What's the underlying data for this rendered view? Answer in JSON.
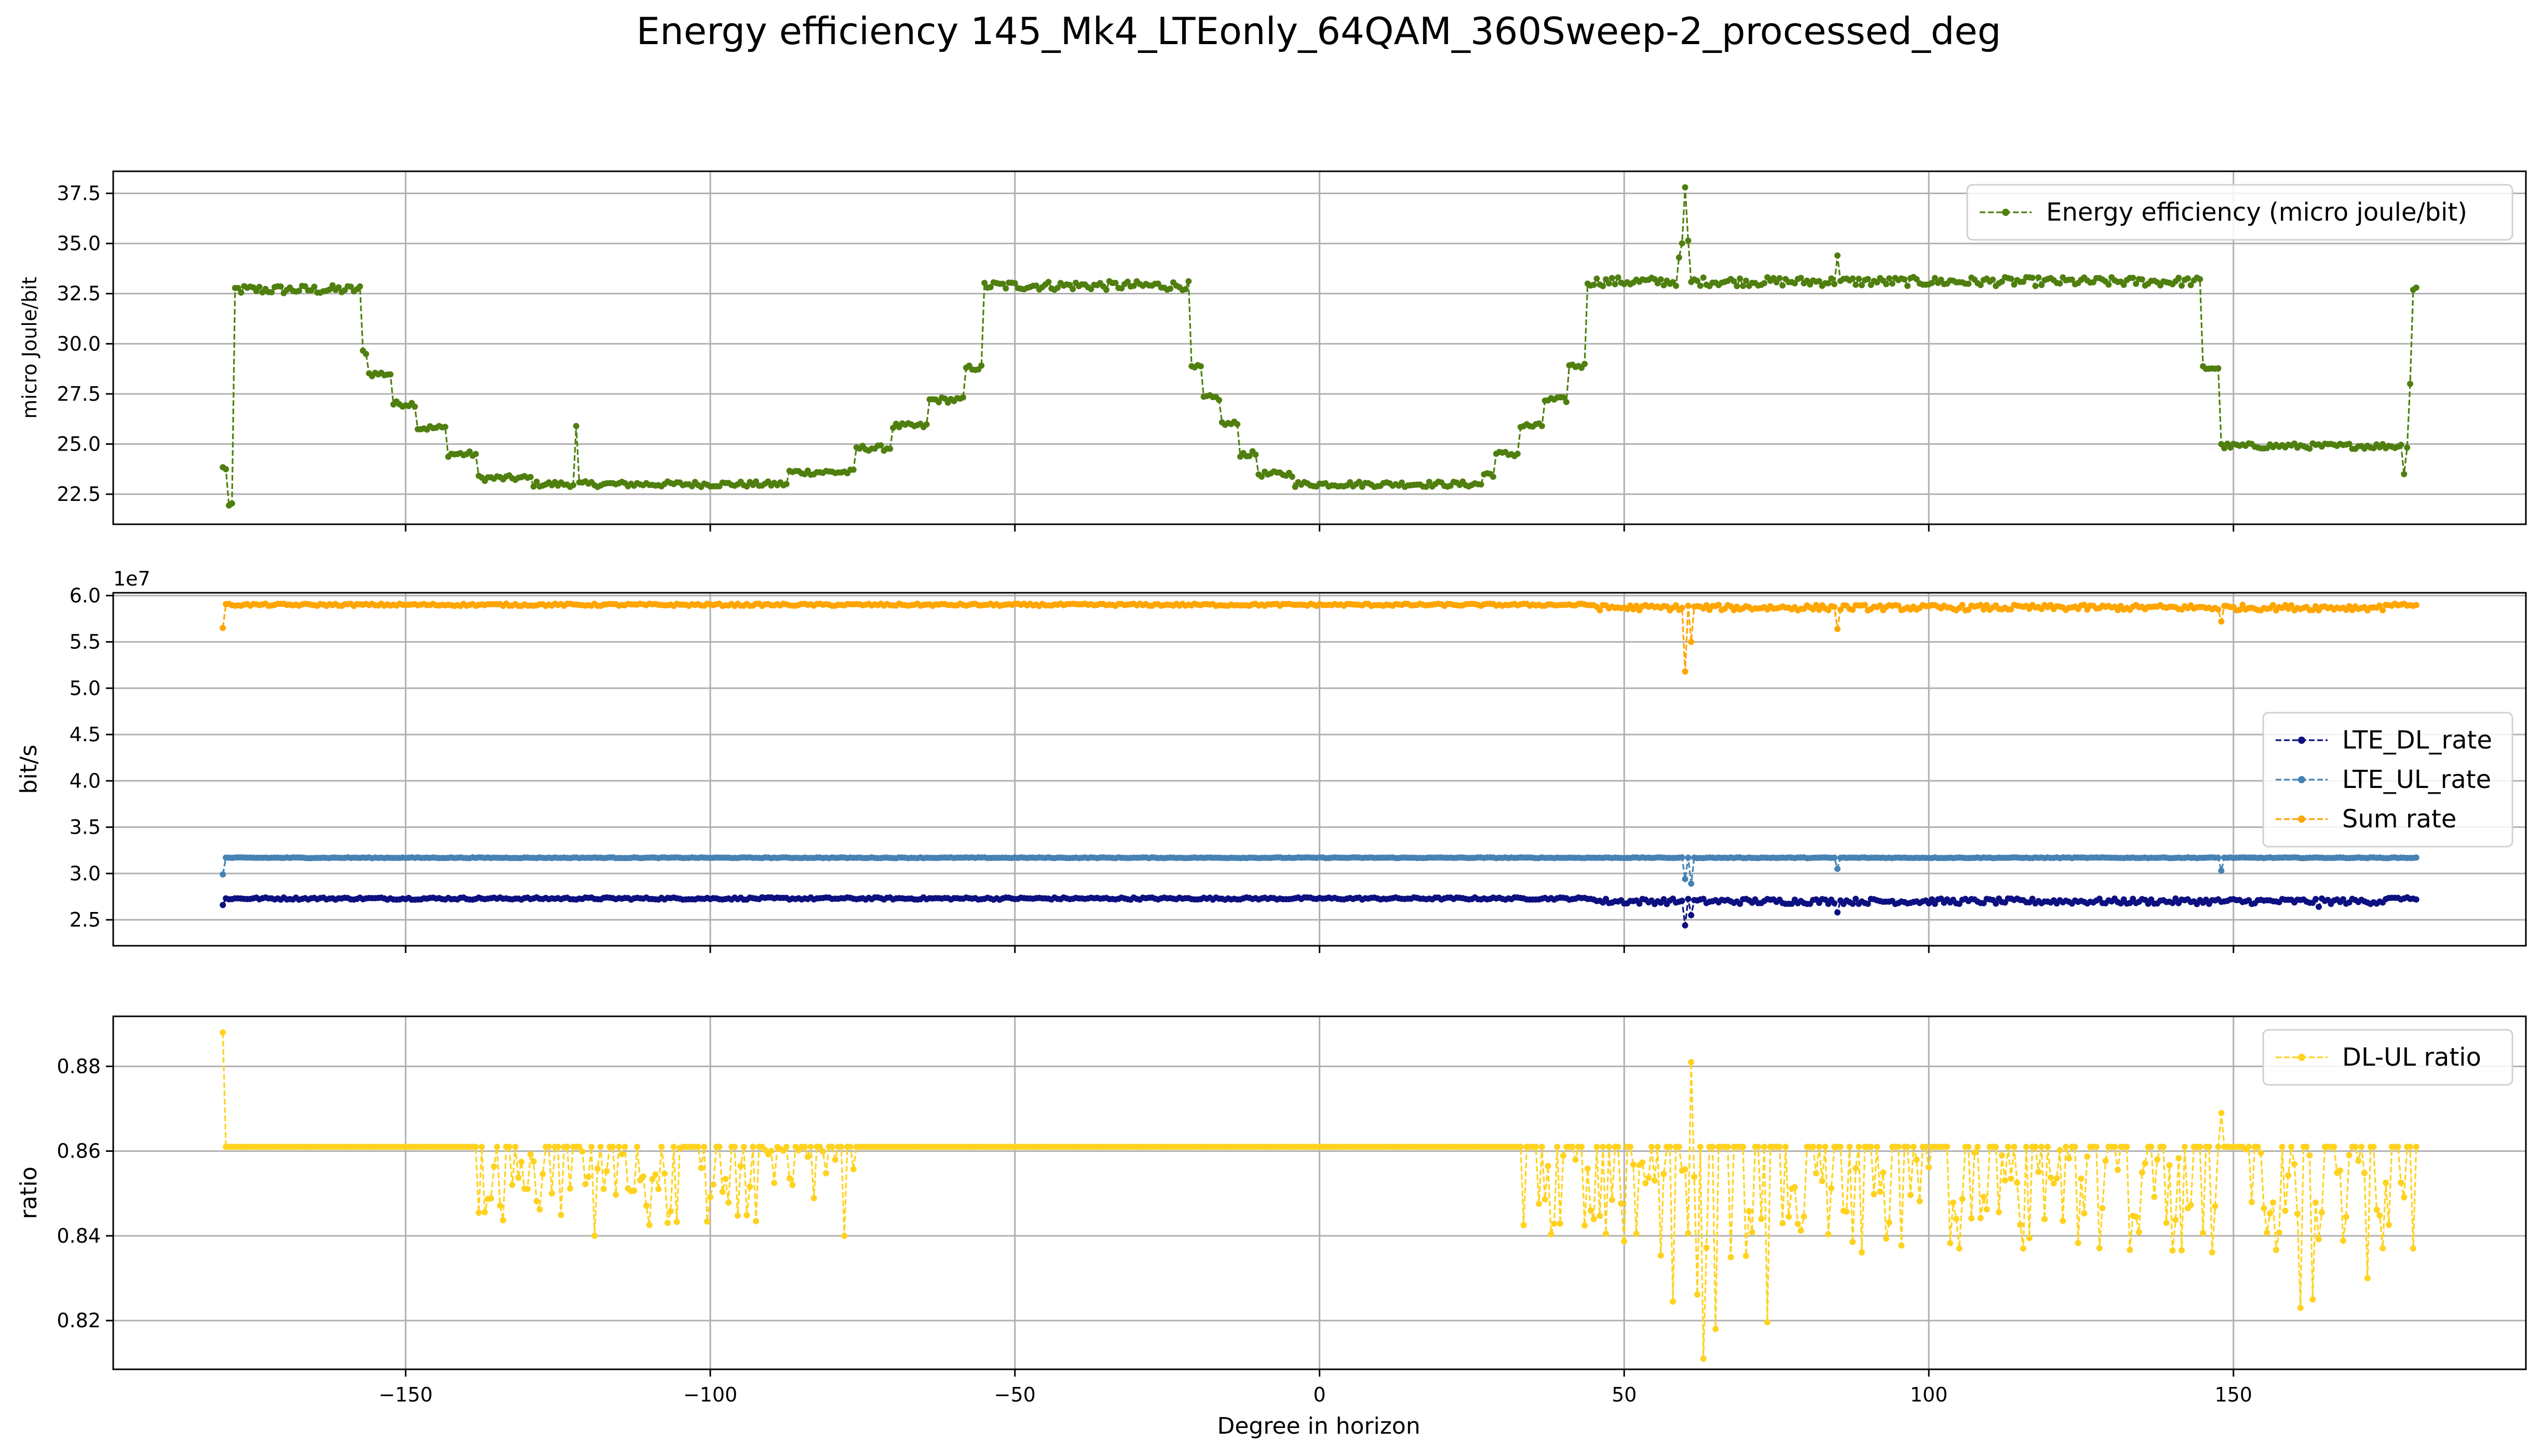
{
  "figure": {
    "title": "Energy efficiency 145_Mk4_LTEonly_64QAM_360Sweep-2_processed_deg",
    "xlabel": "Degree in horizon",
    "xlim": [
      -198,
      198
    ],
    "xticks": [
      -150,
      -100,
      -50,
      0,
      50,
      100,
      150
    ],
    "xtick_labels": [
      "−150",
      "−100",
      "−50",
      "0",
      "50",
      "100",
      "150"
    ],
    "grid": true
  },
  "chart_data": [
    {
      "type": "line",
      "panel": "energy",
      "ylabel": "micro Joule/bit",
      "ylim": [
        21.0,
        38.6
      ],
      "yticks": [
        22.5,
        25.0,
        27.5,
        30.0,
        32.5,
        35.0,
        37.5
      ],
      "ytick_labels": [
        "22.5",
        "25.0",
        "27.5",
        "30.0",
        "32.5",
        "35.0",
        "37.5"
      ],
      "legend_position": "upper-right",
      "x_range": [
        -180,
        180
      ],
      "series": [
        {
          "name": "Energy efficiency (micro joule/bit)",
          "color": "#4f7f0f",
          "segments": [
            {
              "from": -180,
              "to": -179,
              "value": 23.8
            },
            {
              "from": -179,
              "to": -178,
              "value": 21.9
            },
            {
              "from": -178,
              "to": -157,
              "value": 32.7
            },
            {
              "from": -157,
              "to": -156,
              "value": 29.6
            },
            {
              "from": -156,
              "to": -152,
              "value": 28.5
            },
            {
              "from": -152,
              "to": -148,
              "value": 27.0
            },
            {
              "from": -148,
              "to": -143,
              "value": 25.8
            },
            {
              "from": -143,
              "to": -138,
              "value": 24.5
            },
            {
              "from": -138,
              "to": -129,
              "value": 23.3
            },
            {
              "from": -129,
              "to": -87,
              "value": 23.0
            },
            {
              "from": -87,
              "to": -76,
              "value": 23.6
            },
            {
              "from": -76,
              "to": -70,
              "value": 24.8
            },
            {
              "from": -70,
              "to": -64,
              "value": 25.9
            },
            {
              "from": -64,
              "to": -58,
              "value": 27.2
            },
            {
              "from": -58,
              "to": -55,
              "value": 28.8
            },
            {
              "from": -55,
              "to": -21,
              "value": 32.9
            },
            {
              "from": -21,
              "to": -19,
              "value": 28.8
            },
            {
              "from": -19,
              "to": -16,
              "value": 27.3
            },
            {
              "from": -16,
              "to": -13,
              "value": 26.0
            },
            {
              "from": -13,
              "to": -10,
              "value": 24.5
            },
            {
              "from": -10,
              "to": -4,
              "value": 23.5
            },
            {
              "from": -4,
              "to": 27,
              "value": 23.0
            },
            {
              "from": 27,
              "to": 29,
              "value": 23.5
            },
            {
              "from": 29,
              "to": 33,
              "value": 24.5
            },
            {
              "from": 33,
              "to": 37,
              "value": 25.9
            },
            {
              "from": 37,
              "to": 41,
              "value": 27.2
            },
            {
              "from": 41,
              "to": 44,
              "value": 28.9
            },
            {
              "from": 44,
              "to": 59,
              "value": 33.1
            },
            {
              "from": 59,
              "to": 61,
              "value": 35.0
            },
            {
              "from": 61,
              "to": 145,
              "value": 33.1
            },
            {
              "from": 145,
              "to": 148,
              "value": 28.8
            },
            {
              "from": 148,
              "to": 179,
              "value": 24.9
            },
            {
              "from": 179,
              "to": 181,
              "value": 32.8
            }
          ],
          "spikes": [
            {
              "x": -122,
              "value": 25.9
            },
            {
              "x": 60,
              "value": 37.8
            },
            {
              "x": 59,
              "value": 34.3
            },
            {
              "x": 85,
              "value": 34.4
            },
            {
              "x": 178,
              "value": 23.5
            },
            {
              "x": 179,
              "value": 28.0
            }
          ]
        }
      ]
    },
    {
      "type": "line",
      "panel": "rates",
      "ylabel": "bit/s",
      "offset_label": "1e7",
      "ylim": [
        2.22,
        6.03
      ],
      "yticks": [
        2.5,
        3.0,
        3.5,
        4.0,
        4.5,
        5.0,
        5.5,
        6.0
      ],
      "ytick_labels": [
        "2.5",
        "3.0",
        "3.5",
        "4.0",
        "4.5",
        "5.0",
        "5.5",
        "6.0"
      ],
      "legend_position": "center-right",
      "x_range": [
        -180,
        180
      ],
      "series": [
        {
          "name": "LTE_DL_rate",
          "color": "#0c1080",
          "base": 2.73,
          "dips": [
            {
              "x": -180,
              "value": 2.66
            },
            {
              "x": 60,
              "value": 2.44
            },
            {
              "x": 61,
              "value": 2.55
            },
            {
              "x": 85,
              "value": 2.58
            },
            {
              "x": 164,
              "value": 2.64
            }
          ]
        },
        {
          "name": "LTE_UL_rate",
          "color": "#4682b4",
          "base": 3.17,
          "dips": [
            {
              "x": -180,
              "value": 2.99
            },
            {
              "x": 60,
              "value": 2.94
            },
            {
              "x": 61,
              "value": 2.89
            },
            {
              "x": 85,
              "value": 3.05
            },
            {
              "x": 148,
              "value": 3.03
            }
          ]
        },
        {
          "name": "Sum rate",
          "color": "#ffa500",
          "base": 5.9,
          "dips": [
            {
              "x": -180,
              "value": 5.65
            },
            {
              "x": 60,
              "value": 5.18
            },
            {
              "x": 61,
              "value": 5.5
            },
            {
              "x": 85,
              "value": 5.64
            },
            {
              "x": 148,
              "value": 5.72
            }
          ]
        }
      ]
    },
    {
      "type": "line",
      "panel": "ratio",
      "ylabel": "ratio",
      "ylim": [
        0.8085,
        0.8918
      ],
      "yticks": [
        0.82,
        0.84,
        0.86,
        0.88
      ],
      "ytick_labels": [
        "0.82",
        "0.84",
        "0.86",
        "0.88"
      ],
      "legend_position": "upper-right",
      "x_range": [
        -180,
        180
      ],
      "series": [
        {
          "name": "DL-UL ratio",
          "color": "#ffd21f",
          "base": 0.861,
          "noisy_ranges": [
            {
              "from": -138,
              "to": -75,
              "low": 0.842
            },
            {
              "from": 33,
              "to": 56,
              "low": 0.838
            },
            {
              "from": 56,
              "to": 75,
              "low": 0.818
            },
            {
              "from": 75,
              "to": 180,
              "low": 0.836
            }
          ],
          "spikes": [
            {
              "x": -180,
              "value": 0.888
            },
            {
              "x": -119,
              "value": 0.84
            },
            {
              "x": -78,
              "value": 0.84
            },
            {
              "x": 61,
              "value": 0.881
            },
            {
              "x": 63,
              "value": 0.811
            },
            {
              "x": 65,
              "value": 0.818
            },
            {
              "x": 148,
              "value": 0.869
            },
            {
              "x": 161,
              "value": 0.823
            },
            {
              "x": 163,
              "value": 0.825
            },
            {
              "x": 172,
              "value": 0.83
            }
          ]
        }
      ]
    }
  ]
}
